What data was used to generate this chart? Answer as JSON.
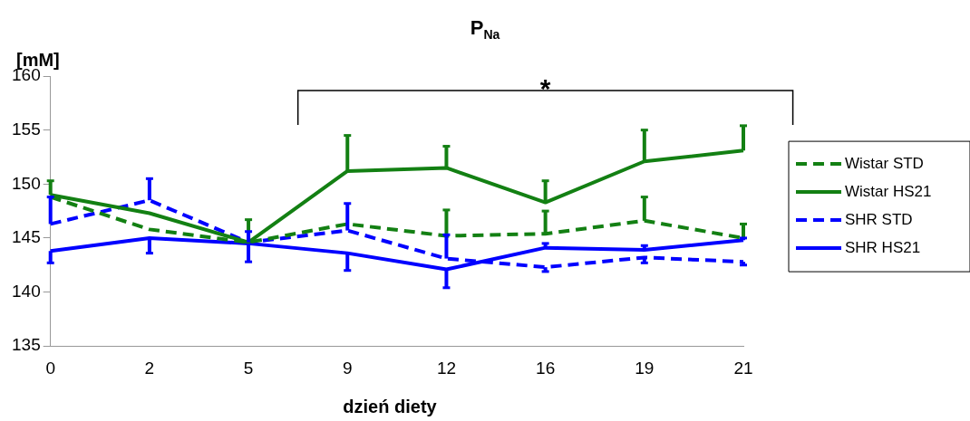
{
  "chart_data": {
    "type": "line",
    "title": "P$_{Na}$",
    "xlabel": "dzień diety",
    "ylabel": "[mM]",
    "categories": [
      "0",
      "2",
      "5",
      "9",
      "12",
      "16",
      "19",
      "21"
    ],
    "series": [
      {
        "name": "Wistar STD",
        "color": "#138013",
        "line_style": "dashed",
        "values": [
          148.8,
          145.8,
          144.6,
          146.3,
          145.2,
          145.4,
          146.6,
          145.0
        ],
        "errors": [
          null,
          null,
          [
            144.6,
            146.7
          ],
          null,
          [
            145.2,
            147.6
          ],
          [
            145.4,
            147.5
          ],
          [
            146.6,
            148.8
          ],
          [
            145.0,
            146.3
          ]
        ]
      },
      {
        "name": "Wistar HS21",
        "color": "#138013",
        "line_style": "solid",
        "values": [
          149.0,
          147.3,
          144.6,
          151.2,
          151.5,
          148.3,
          152.1,
          153.1
        ],
        "errors": [
          [
            149.0,
            150.3
          ],
          null,
          null,
          [
            151.2,
            154.5
          ],
          [
            151.5,
            153.5
          ],
          [
            148.3,
            150.3
          ],
          [
            152.1,
            155.0
          ],
          [
            153.1,
            155.4
          ]
        ]
      },
      {
        "name": "SHR STD",
        "color": "#0000ff",
        "line_style": "dashed",
        "values": [
          146.3,
          148.5,
          144.6,
          145.7,
          143.1,
          142.3,
          143.2,
          142.8
        ],
        "errors": [
          [
            146.3,
            148.8
          ],
          [
            148.5,
            150.5
          ],
          [
            144.6,
            145.6
          ],
          [
            145.7,
            148.2
          ],
          [
            143.1,
            145.3
          ],
          [
            141.9,
            142.3
          ],
          [
            142.7,
            143.2
          ],
          [
            142.5,
            142.8
          ]
        ]
      },
      {
        "name": "SHR HS21",
        "color": "#0000ff",
        "line_style": "solid",
        "values": [
          143.8,
          145.0,
          144.5,
          143.6,
          142.1,
          144.1,
          143.9,
          144.8
        ],
        "errors": [
          [
            142.7,
            143.8
          ],
          [
            143.6,
            145.0
          ],
          [
            142.8,
            144.5
          ],
          [
            142.0,
            143.6
          ],
          [
            140.4,
            142.1
          ],
          [
            144.1,
            144.5
          ],
          [
            143.9,
            144.3
          ],
          [
            144.8,
            145.0
          ]
        ]
      }
    ],
    "ylim": [
      135,
      160
    ],
    "yticks": [
      135,
      140,
      145,
      150,
      155,
      160
    ],
    "grid": false,
    "legend": "right",
    "marker": "none",
    "annotations": [
      "*"
    ]
  }
}
